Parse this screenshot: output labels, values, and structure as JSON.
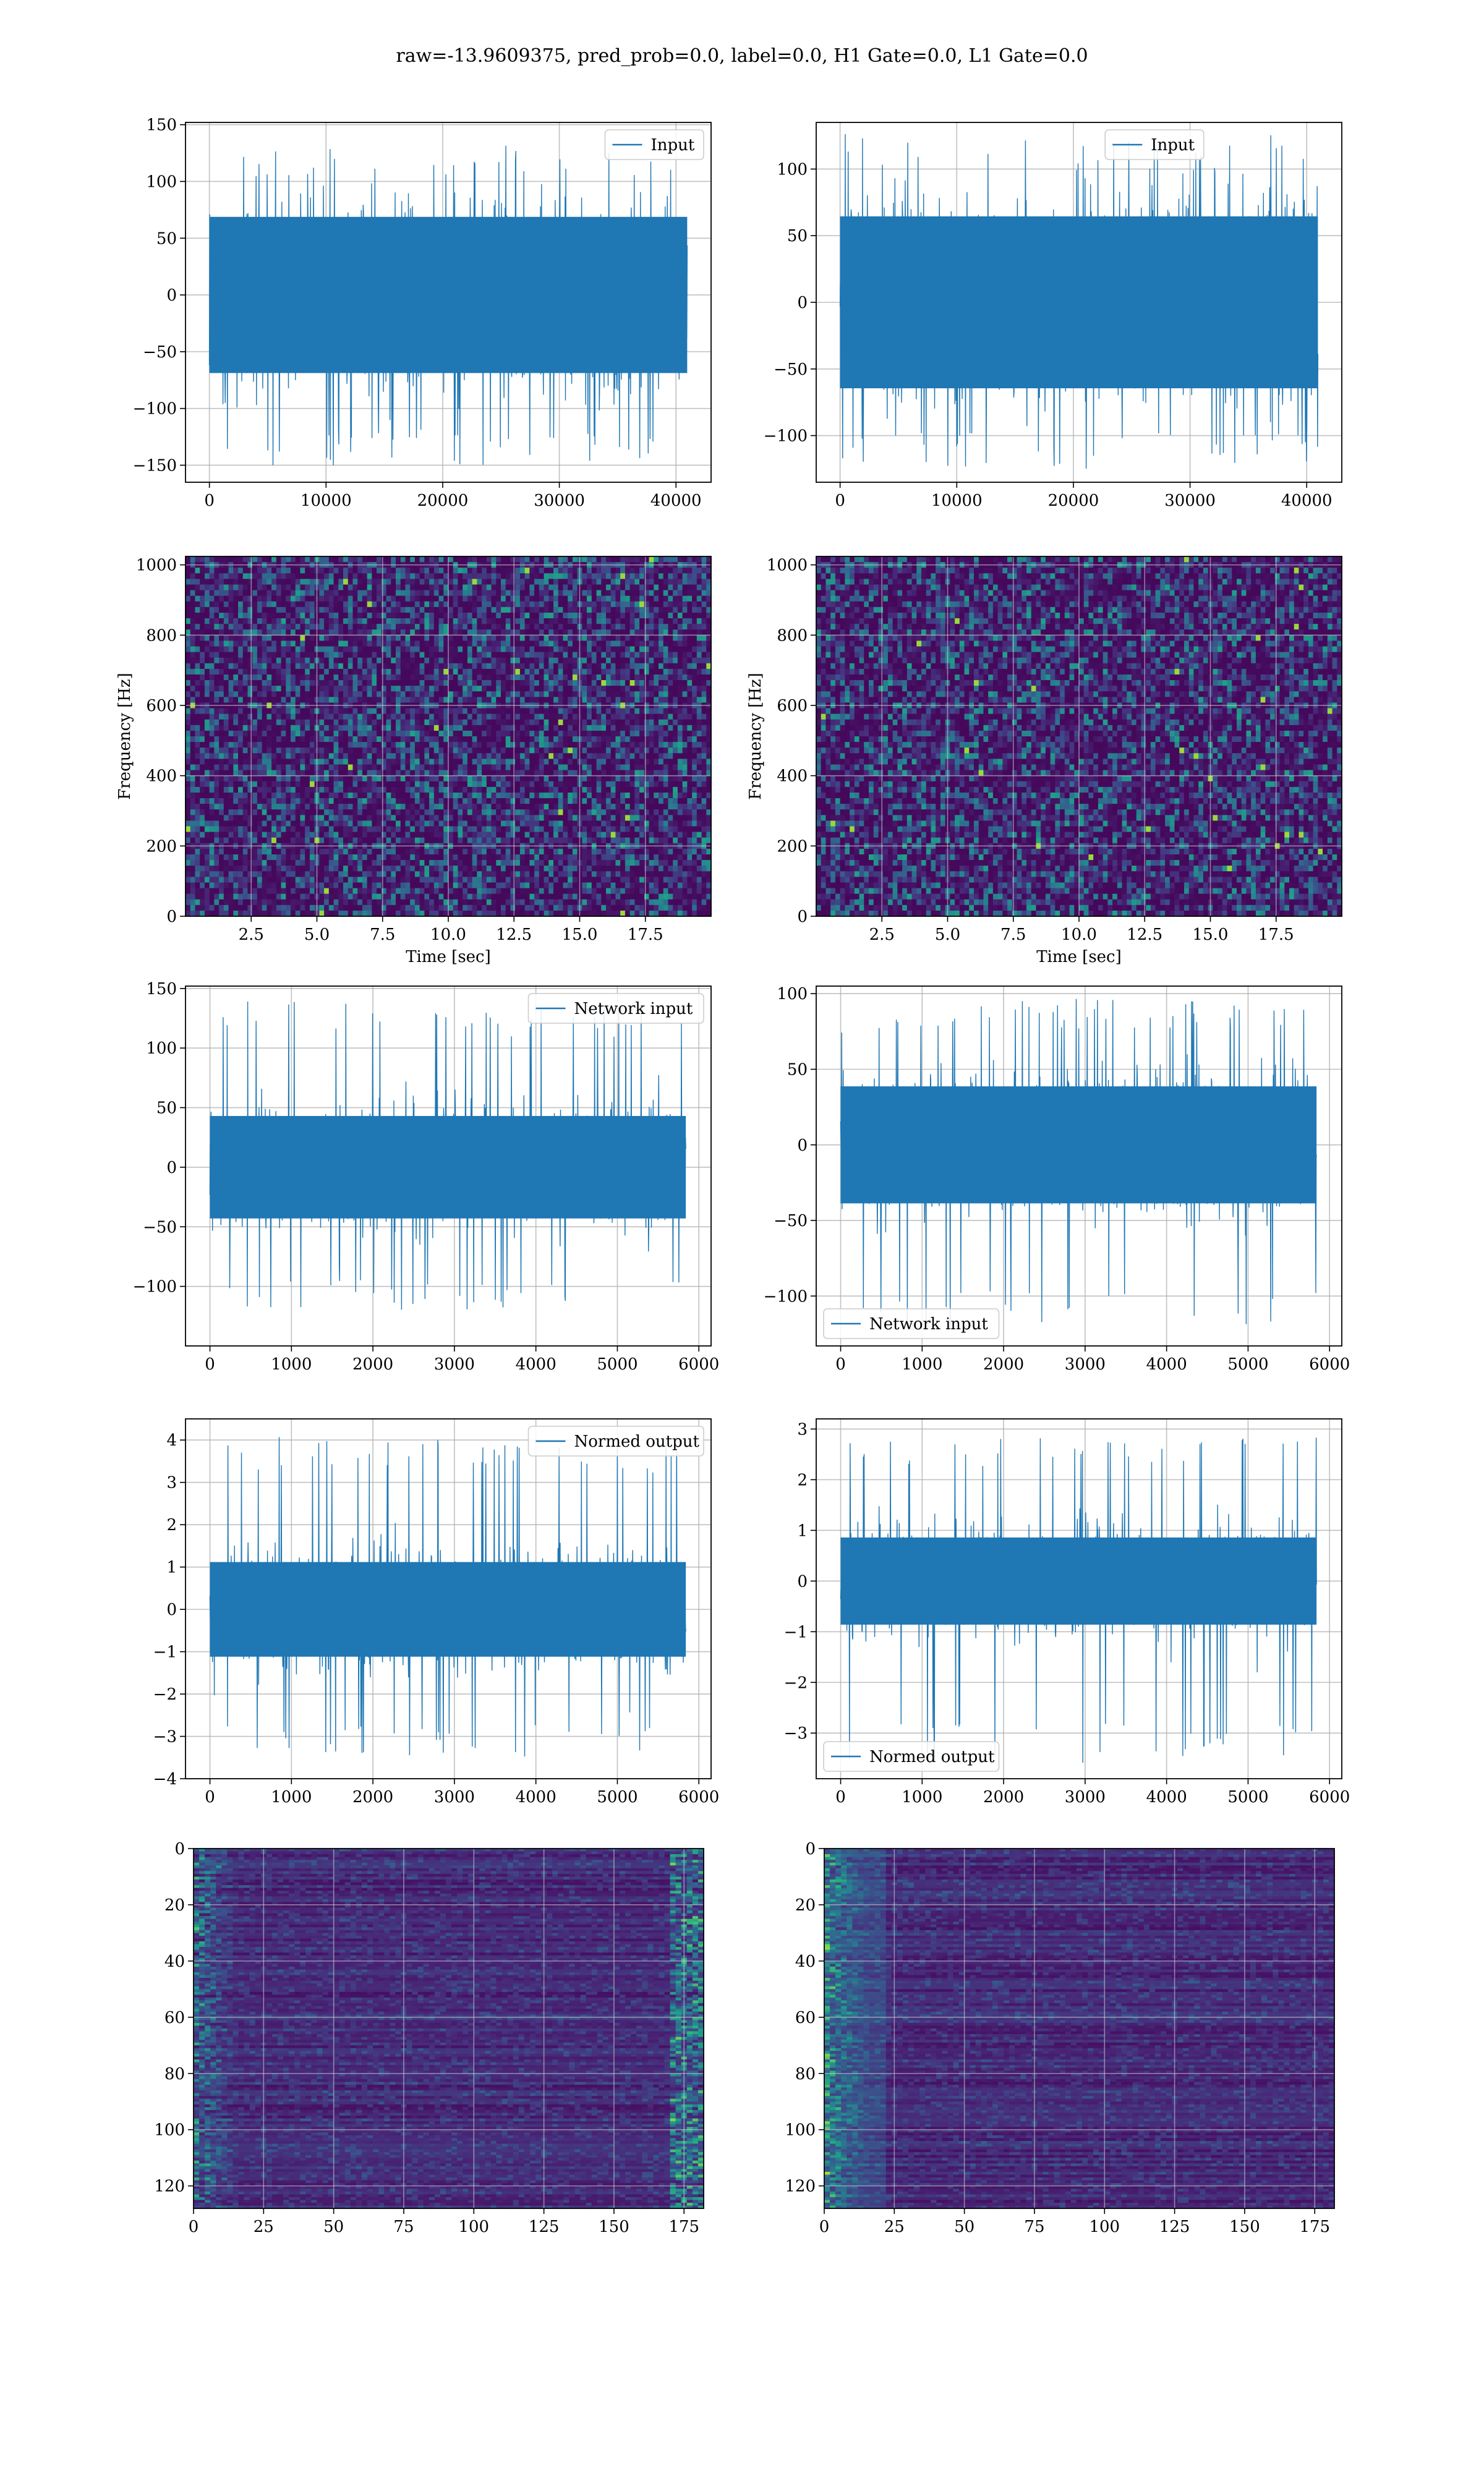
{
  "figure": {
    "suptitle": "raw=-13.9609375, pred_prob=0.0, label=0.0, H1 Gate=0.0, L1 Gate=0.0"
  },
  "colors": {
    "line": "#1f77b4",
    "grid": "#b0b0b0",
    "axes": "#000000"
  },
  "chart_data": [
    {
      "id": "row1-left",
      "type": "line",
      "series": [
        {
          "name": "Input",
          "x_range": [
            0,
            40960
          ],
          "amplitude_band": [
            -80,
            80
          ],
          "peak_range": [
            -152,
            132
          ]
        }
      ],
      "xlim": [
        -2048,
        43008
      ],
      "ylim": [
        -165,
        152
      ],
      "xticks": [
        0,
        10000,
        20000,
        30000,
        40000
      ],
      "xtick_labels": [
        "0",
        "10000",
        "20000",
        "30000",
        "40000"
      ],
      "yticks": [
        -150,
        -100,
        -50,
        0,
        50,
        100,
        150
      ],
      "ytick_labels": [
        "−150",
        "−100",
        "−50",
        "0",
        "50",
        "100",
        "150"
      ],
      "legend": "top-right",
      "grid": true,
      "xlabel": "",
      "ylabel": ""
    },
    {
      "id": "row1-right",
      "type": "line",
      "series": [
        {
          "name": "Input",
          "x_range": [
            0,
            40960
          ],
          "amplitude_band": [
            -75,
            75
          ],
          "peak_range": [
            -125,
            127
          ]
        }
      ],
      "xlim": [
        -2048,
        43008
      ],
      "ylim": [
        -135,
        135
      ],
      "xticks": [
        0,
        10000,
        20000,
        30000,
        40000
      ],
      "xtick_labels": [
        "0",
        "10000",
        "20000",
        "30000",
        "40000"
      ],
      "yticks": [
        -100,
        -50,
        0,
        50,
        100
      ],
      "ytick_labels": [
        "−100",
        "−50",
        "0",
        "50",
        "100"
      ],
      "legend": "top-center",
      "grid": true,
      "xlabel": "",
      "ylabel": ""
    },
    {
      "id": "row2-left",
      "type": "heatmap",
      "xlim": [
        0,
        20
      ],
      "ylim": [
        0,
        1024
      ],
      "xticks": [
        2.5,
        5.0,
        7.5,
        10.0,
        12.5,
        15.0,
        17.5
      ],
      "xtick_labels": [
        "2.5",
        "5.0",
        "7.5",
        "10.0",
        "12.5",
        "15.0",
        "17.5"
      ],
      "yticks": [
        0,
        200,
        400,
        600,
        800,
        1000
      ],
      "ytick_labels": [
        "0",
        "200",
        "400",
        "600",
        "800",
        "1000"
      ],
      "xlabel": "Time [sec]",
      "ylabel": "Frequency [Hz]",
      "colormap": "viridis",
      "grid": true
    },
    {
      "id": "row2-right",
      "type": "heatmap",
      "xlim": [
        0,
        20
      ],
      "ylim": [
        0,
        1024
      ],
      "xticks": [
        2.5,
        5.0,
        7.5,
        10.0,
        12.5,
        15.0,
        17.5
      ],
      "xtick_labels": [
        "2.5",
        "5.0",
        "7.5",
        "10.0",
        "12.5",
        "15.0",
        "17.5"
      ],
      "yticks": [
        0,
        200,
        400,
        600,
        800,
        1000
      ],
      "ytick_labels": [
        "0",
        "200",
        "400",
        "600",
        "800",
        "1000"
      ],
      "xlabel": "Time [sec]",
      "ylabel": "Frequency [Hz]",
      "colormap": "viridis",
      "grid": true
    },
    {
      "id": "row3-left",
      "type": "line",
      "series": [
        {
          "name": "Network input",
          "x_range": [
            0,
            5840
          ],
          "amplitude_band": [
            -50,
            50
          ],
          "peak_range": [
            -120,
            140
          ]
        }
      ],
      "xlim": [
        -300,
        6150
      ],
      "ylim": [
        -150,
        152
      ],
      "xticks": [
        0,
        1000,
        2000,
        3000,
        4000,
        5000,
        6000
      ],
      "xtick_labels": [
        "0",
        "1000",
        "2000",
        "3000",
        "4000",
        "5000",
        "6000"
      ],
      "yticks": [
        -100,
        -50,
        0,
        50,
        100,
        150
      ],
      "ytick_labels": [
        "−100",
        "−50",
        "0",
        "50",
        "100",
        "150"
      ],
      "legend": "top-right",
      "grid": true,
      "xlabel": "",
      "ylabel": ""
    },
    {
      "id": "row3-right",
      "type": "line",
      "series": [
        {
          "name": "Network input",
          "x_range": [
            0,
            5840
          ],
          "amplitude_band": [
            -45,
            45
          ],
          "peak_range": [
            -122,
            97
          ]
        }
      ],
      "xlim": [
        -300,
        6150
      ],
      "ylim": [
        -133,
        105
      ],
      "xticks": [
        0,
        1000,
        2000,
        3000,
        4000,
        5000,
        6000
      ],
      "xtick_labels": [
        "0",
        "1000",
        "2000",
        "3000",
        "4000",
        "5000",
        "6000"
      ],
      "yticks": [
        -100,
        -50,
        0,
        50,
        100
      ],
      "ytick_labels": [
        "−100",
        "−50",
        "0",
        "50",
        "100"
      ],
      "legend": "bottom-left",
      "grid": true,
      "xlabel": "",
      "ylabel": ""
    },
    {
      "id": "row4-left",
      "type": "line",
      "series": [
        {
          "name": "Normed output",
          "x_range": [
            0,
            5840
          ],
          "amplitude_band": [
            -1.3,
            1.3
          ],
          "peak_range": [
            -3.5,
            4.1
          ]
        }
      ],
      "xlim": [
        -300,
        6150
      ],
      "ylim": [
        -4.0,
        4.5
      ],
      "xticks": [
        0,
        1000,
        2000,
        3000,
        4000,
        5000,
        6000
      ],
      "xtick_labels": [
        "0",
        "1000",
        "2000",
        "3000",
        "4000",
        "5000",
        "6000"
      ],
      "yticks": [
        -4,
        -3,
        -2,
        -1,
        0,
        1,
        2,
        3,
        4
      ],
      "ytick_labels": [
        "−4",
        "−3",
        "−2",
        "−1",
        "0",
        "1",
        "2",
        "3",
        "4"
      ],
      "legend": "top-right",
      "grid": true,
      "xlabel": "",
      "ylabel": ""
    },
    {
      "id": "row4-right",
      "type": "line",
      "series": [
        {
          "name": "Normed output",
          "x_range": [
            0,
            5840
          ],
          "amplitude_band": [
            -1.0,
            1.0
          ],
          "peak_range": [
            -3.6,
            2.9
          ]
        }
      ],
      "xlim": [
        -300,
        6150
      ],
      "ylim": [
        -3.9,
        3.2
      ],
      "xticks": [
        0,
        1000,
        2000,
        3000,
        4000,
        5000,
        6000
      ],
      "xtick_labels": [
        "0",
        "1000",
        "2000",
        "3000",
        "4000",
        "5000",
        "6000"
      ],
      "yticks": [
        -3,
        -2,
        -1,
        0,
        1,
        2,
        3
      ],
      "ytick_labels": [
        "−3",
        "−2",
        "−1",
        "0",
        "1",
        "2",
        "3"
      ],
      "legend": "bottom-left",
      "grid": true,
      "xlabel": "",
      "ylabel": ""
    },
    {
      "id": "row5-left",
      "type": "heatmap",
      "xlim": [
        0,
        182
      ],
      "ylim": [
        128,
        0
      ],
      "xticks": [
        0,
        25,
        50,
        75,
        100,
        125,
        150,
        175
      ],
      "xtick_labels": [
        "0",
        "25",
        "50",
        "75",
        "100",
        "125",
        "150",
        "175"
      ],
      "yticks": [
        0,
        20,
        40,
        60,
        80,
        100,
        120
      ],
      "ytick_labels": [
        "0",
        "20",
        "40",
        "60",
        "80",
        "100",
        "120"
      ],
      "xlabel": "",
      "ylabel": "",
      "colormap": "viridis",
      "grid": true
    },
    {
      "id": "row5-right",
      "type": "heatmap",
      "xlim": [
        0,
        182
      ],
      "ylim": [
        128,
        0
      ],
      "xticks": [
        0,
        25,
        50,
        75,
        100,
        125,
        150,
        175
      ],
      "xtick_labels": [
        "0",
        "25",
        "50",
        "75",
        "100",
        "125",
        "150",
        "175"
      ],
      "yticks": [
        0,
        20,
        40,
        60,
        80,
        100,
        120
      ],
      "ytick_labels": [
        "0",
        "20",
        "40",
        "60",
        "80",
        "100",
        "120"
      ],
      "xlabel": "",
      "ylabel": "",
      "colormap": "viridis",
      "grid": true
    }
  ]
}
